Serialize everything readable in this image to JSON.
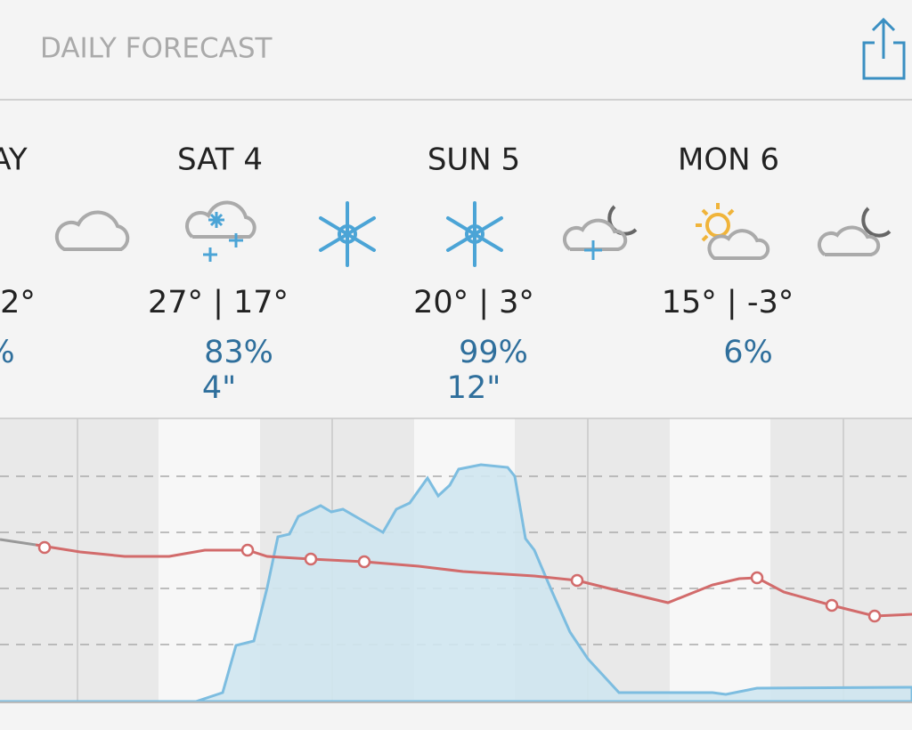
{
  "header": {
    "title": "DAILY FORECAST"
  },
  "days": [
    {
      "label": "AY",
      "temps": "2°",
      "precip": "%"
    },
    {
      "label": "SAT 4",
      "temps": "27° | 17°",
      "precip": "83%",
      "amount": "4\""
    },
    {
      "label": "SUN 5",
      "temps": "20° | 3°",
      "precip": "99%",
      "amount": "12\""
    },
    {
      "label": "MON 6",
      "temps": "15° | -3°",
      "precip": "6%"
    }
  ]
}
